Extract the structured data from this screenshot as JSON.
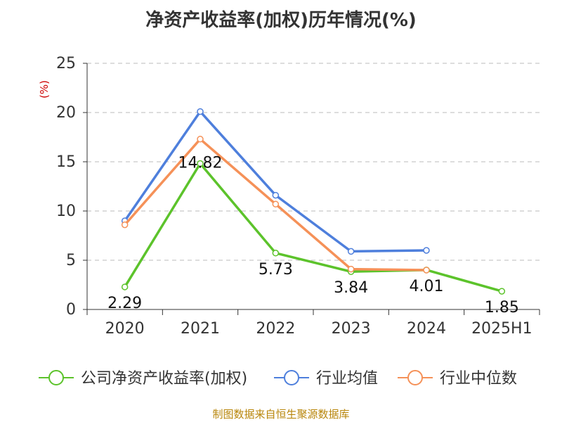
{
  "title": "净资产收益率(加权)历年情况(%)",
  "source_note": "制图数据来自恒生聚源数据库",
  "colors": {
    "company": "#5cc32b",
    "industry_avg": "#4e7fdc",
    "industry_median": "#f59158",
    "grid": "#bbbbbb",
    "unit": "#cc0000"
  },
  "chart_data": {
    "type": "line",
    "title": "净资产收益率(加权)历年情况(%)",
    "unit_label": "(%)",
    "categories": [
      "2020",
      "2021",
      "2022",
      "2023",
      "2024",
      "2025H1"
    ],
    "ylim": [
      0,
      25
    ],
    "yticks": [
      0,
      5,
      10,
      15,
      20,
      25
    ],
    "grid": true,
    "legend_position": "bottom",
    "series": [
      {
        "name": "公司净资产收益率(加权)",
        "color_key": "company",
        "values": [
          2.29,
          14.82,
          5.73,
          3.84,
          4.01,
          1.85
        ],
        "show_labels": true
      },
      {
        "name": "行业均值",
        "color_key": "industry_avg",
        "values": [
          9.0,
          20.1,
          11.6,
          5.9,
          6.0,
          null
        ],
        "show_labels": false
      },
      {
        "name": "行业中位数",
        "color_key": "industry_median",
        "values": [
          8.6,
          17.3,
          10.7,
          4.1,
          4.0,
          null
        ],
        "show_labels": false
      }
    ]
  }
}
